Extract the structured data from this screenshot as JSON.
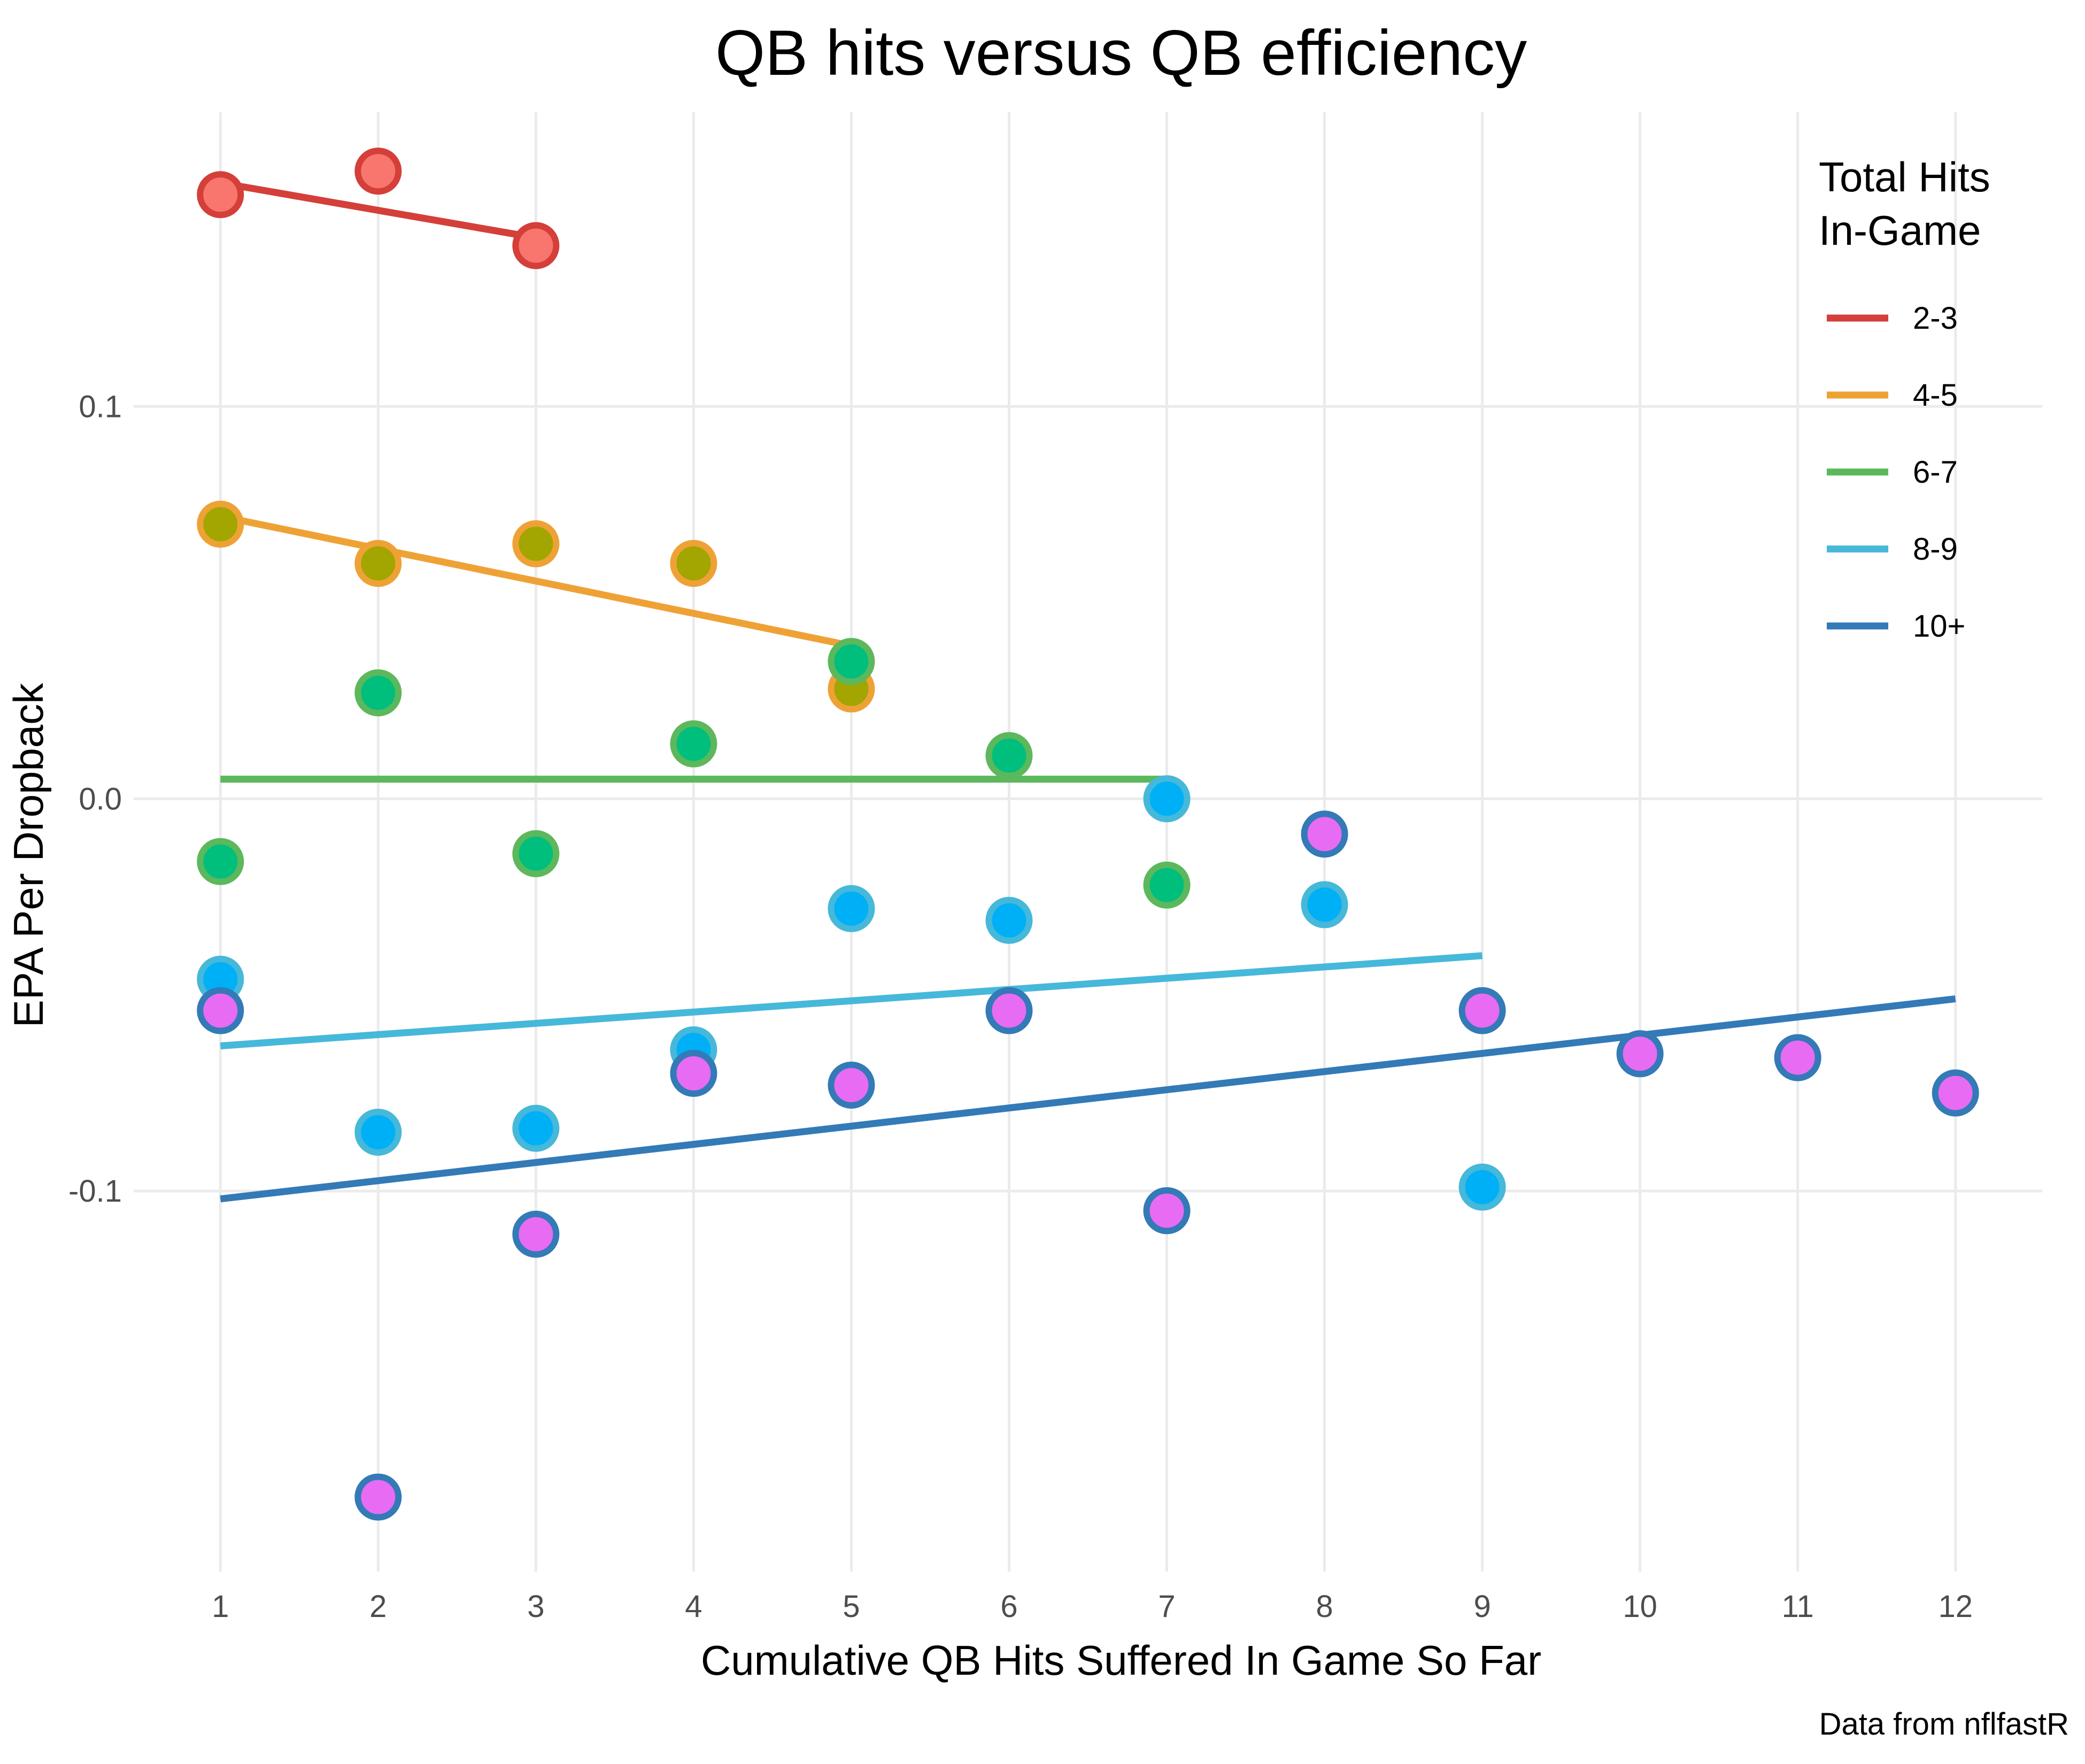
{
  "chart_data": {
    "type": "scatter",
    "title": "QB hits versus QB efficiency",
    "xlabel": "Cumulative QB Hits Suffered In Game So Far",
    "ylabel": "EPA Per Dropback",
    "caption": "Data from nflfastR",
    "x_ticks": [
      1,
      2,
      3,
      4,
      5,
      6,
      7,
      8,
      9,
      10,
      11,
      12
    ],
    "x_tick_labels": [
      "1",
      "2",
      "3",
      "4",
      "5",
      "6",
      "7",
      "8",
      "9",
      "10",
      "11",
      "12"
    ],
    "y_ticks": [
      -0.1,
      0.0,
      0.1
    ],
    "y_tick_labels": [
      "-0.1",
      "0.0",
      "0.1"
    ],
    "xlim": [
      0.45,
      12.55
    ],
    "ylim": [
      -0.197,
      0.175
    ],
    "grid": true,
    "legend": {
      "title_lines": [
        "Total Hits",
        "In-Game"
      ],
      "position": "right"
    },
    "series": [
      {
        "name": "2-3",
        "line_color": "#D43F3A",
        "point_fill": "#F8766D",
        "point_stroke": "#D43F3A",
        "points": [
          [
            1,
            0.154
          ],
          [
            2,
            0.16
          ],
          [
            3,
            0.141
          ]
        ],
        "fit": [
          [
            1,
            0.157
          ],
          [
            3,
            0.143
          ]
        ]
      },
      {
        "name": "4-5",
        "line_color": "#EEA236",
        "point_fill": "#A3A500",
        "point_stroke": "#EEA236",
        "points": [
          [
            1,
            0.07
          ],
          [
            2,
            0.06
          ],
          [
            3,
            0.065
          ],
          [
            4,
            0.06
          ],
          [
            5,
            0.028
          ]
        ],
        "fit": [
          [
            1,
            0.072
          ],
          [
            5,
            0.039
          ]
        ]
      },
      {
        "name": "6-7",
        "line_color": "#5CB85C",
        "point_fill": "#00BF7D",
        "point_stroke": "#5CB85C",
        "points": [
          [
            1,
            -0.016
          ],
          [
            2,
            0.027
          ],
          [
            3,
            -0.014
          ],
          [
            4,
            0.014
          ],
          [
            5,
            0.035
          ],
          [
            6,
            0.011
          ],
          [
            7,
            -0.022
          ]
        ],
        "fit": [
          [
            1,
            0.005
          ],
          [
            7,
            0.005
          ]
        ]
      },
      {
        "name": "8-9",
        "line_color": "#46B8DA",
        "point_fill": "#00B0F6",
        "point_stroke": "#46B8DA",
        "points": [
          [
            1,
            -0.046
          ],
          [
            2,
            -0.085
          ],
          [
            3,
            -0.084
          ],
          [
            4,
            -0.064
          ],
          [
            5,
            -0.028
          ],
          [
            6,
            -0.031
          ],
          [
            7,
            0.0
          ],
          [
            8,
            -0.027
          ],
          [
            9,
            -0.099
          ]
        ],
        "fit": [
          [
            1,
            -0.063
          ],
          [
            9,
            -0.04
          ]
        ]
      },
      {
        "name": "10+",
        "line_color": "#337AB7",
        "point_fill": "#E76BF3",
        "point_stroke": "#337AB7",
        "points": [
          [
            1,
            -0.054
          ],
          [
            2,
            -0.178
          ],
          [
            3,
            -0.111
          ],
          [
            4,
            -0.07
          ],
          [
            5,
            -0.073
          ],
          [
            6,
            -0.054
          ],
          [
            7,
            -0.105
          ],
          [
            8,
            -0.009
          ],
          [
            9,
            -0.054
          ],
          [
            10,
            -0.065
          ],
          [
            11,
            -0.066
          ],
          [
            12,
            -0.075
          ]
        ],
        "fit": [
          [
            1,
            -0.102
          ],
          [
            12,
            -0.051
          ]
        ]
      }
    ]
  }
}
